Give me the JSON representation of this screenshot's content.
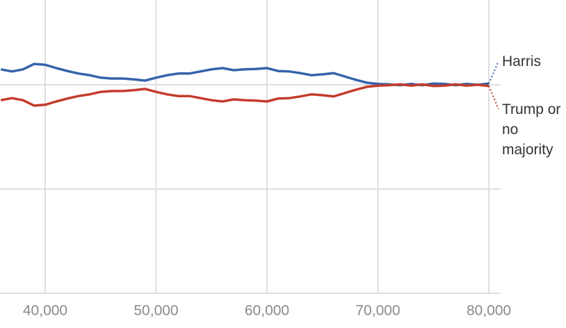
{
  "chart_data": {
    "type": "line",
    "x": [
      36000,
      37000,
      38000,
      39000,
      40000,
      41000,
      42000,
      43000,
      44000,
      45000,
      46000,
      47000,
      48000,
      49000,
      50000,
      51000,
      52000,
      53000,
      54000,
      55000,
      56000,
      57000,
      58000,
      59000,
      60000,
      61000,
      62000,
      63000,
      64000,
      65000,
      66000,
      67000,
      68000,
      69000,
      70000,
      71000,
      72000,
      73000,
      74000,
      75000,
      76000,
      77000,
      78000,
      79000,
      80000
    ],
    "series": [
      {
        "name": "Harris",
        "color": "#3563ab",
        "values": [
          53.7,
          53.2,
          53.7,
          55,
          54.8,
          54,
          53.3,
          52.7,
          52.3,
          51.7,
          51.5,
          51.5,
          51.3,
          51,
          51.7,
          52.3,
          52.7,
          52.7,
          53.2,
          53.7,
          54,
          53.5,
          53.7,
          53.8,
          54,
          53.3,
          53.2,
          52.8,
          52.3,
          52.5,
          52.8,
          52,
          51.2,
          50.5,
          50.2,
          50.1,
          49.9,
          50.2,
          49.9,
          50.3,
          50.2,
          49.9,
          50.2,
          50,
          50.3
        ]
      },
      {
        "name": "Trump or no majority",
        "color": "#c43c2c",
        "values": [
          46.3,
          46.8,
          46.3,
          45,
          45.2,
          46,
          46.7,
          47.3,
          47.7,
          48.3,
          48.5,
          48.5,
          48.7,
          49,
          48.3,
          47.7,
          47.3,
          47.3,
          46.8,
          46.3,
          46,
          46.5,
          46.3,
          46.2,
          46,
          46.7,
          46.8,
          47.2,
          47.7,
          47.5,
          47.2,
          48,
          48.8,
          49.5,
          49.8,
          49.9,
          50.1,
          49.8,
          50.1,
          49.7,
          49.8,
          50.1,
          49.8,
          50,
          49.7
        ]
      }
    ],
    "xlim": [
      35925,
      81066
    ],
    "xticks": [
      {
        "value": 40000,
        "label": "40,000"
      },
      {
        "value": 50000,
        "label": "50,000"
      },
      {
        "value": 60000,
        "label": "60,000"
      },
      {
        "value": 70000,
        "label": "70,000"
      },
      {
        "value": 80000,
        "label": "80,000"
      }
    ],
    "ylim": [
      0,
      70
    ],
    "yticks": [
      0,
      25,
      50
    ],
    "grid": true
  }
}
